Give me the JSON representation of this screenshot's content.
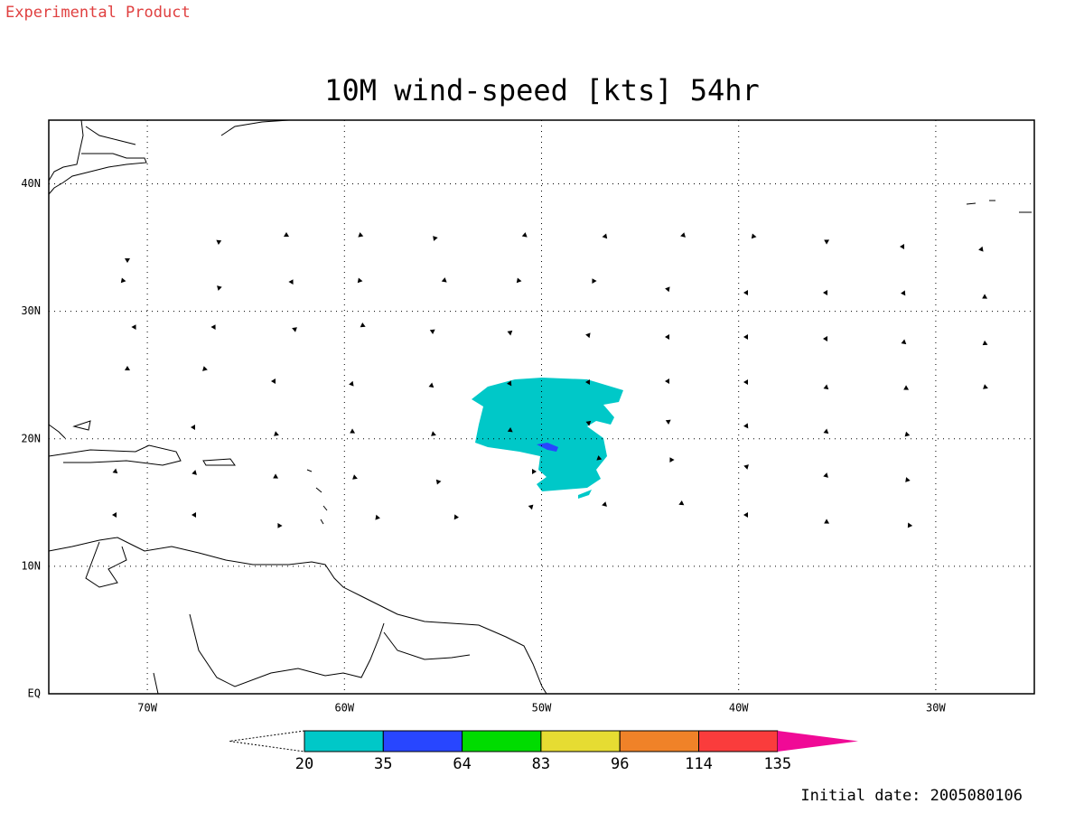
{
  "header": {
    "note": "Experimental Product",
    "title": "10M wind-speed [kts] 54hr",
    "footer": "Initial date: 2005080106"
  },
  "map": {
    "lonlim": [
      -75,
      -25
    ],
    "latlim": [
      0,
      45
    ],
    "lonticks": [
      {
        "value": -70,
        "label": "70W"
      },
      {
        "value": -60,
        "label": "60W"
      },
      {
        "value": -50,
        "label": "50W"
      },
      {
        "value": -40,
        "label": "40W"
      },
      {
        "value": -30,
        "label": "30W"
      }
    ],
    "latticks": [
      {
        "value": 0,
        "label": "EQ"
      },
      {
        "value": 10,
        "label": "10N"
      },
      {
        "value": 20,
        "label": "20N"
      },
      {
        "value": 30,
        "label": "30N"
      },
      {
        "value": 40,
        "label": "40N"
      }
    ],
    "grid": true
  },
  "colorbar": {
    "levels": [
      20,
      35,
      64,
      83,
      96,
      114,
      135
    ],
    "colors": [
      "#00c8c8",
      "#2846ff",
      "#00dc00",
      "#e6dc32",
      "#f08228",
      "#fa3c3c",
      "#f00a96"
    ]
  }
}
